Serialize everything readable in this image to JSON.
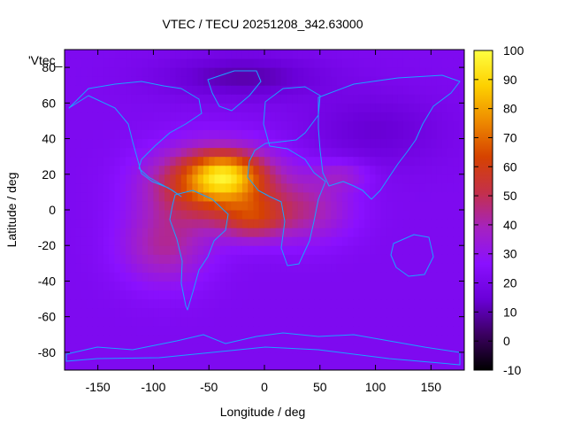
{
  "chart_data": {
    "type": "heatmap",
    "title": "VTEC / TECU 20251208_342.63000",
    "xlabel": "Longitude / deg",
    "ylabel": "Latitude / deg",
    "xlim": [
      -180,
      180
    ],
    "ylim": [
      -90,
      90
    ],
    "x_ticks": [
      -150,
      -100,
      -50,
      0,
      50,
      100,
      150
    ],
    "y_ticks": [
      -80,
      -60,
      -40,
      -20,
      0,
      20,
      40,
      60,
      80
    ],
    "colorbar": {
      "range": [
        -10,
        100
      ],
      "ticks": [
        -10,
        0,
        10,
        20,
        30,
        40,
        50,
        60,
        70,
        80,
        90,
        100
      ],
      "palette": [
        "#000000",
        "#3b0060",
        "#6a00d8",
        "#8a10ff",
        "#a522c0",
        "#c4304a",
        "#d64200",
        "#ee8a00",
        "#fdd000",
        "#ffff40"
      ]
    },
    "legend": {
      "entry": "'Vtec_",
      "placement": "top-left"
    },
    "grid": false,
    "background_vtec": 22,
    "peaks": [
      {
        "lon": -45,
        "lat": 15,
        "vtec": 48,
        "sigma_lon": 55,
        "sigma_lat": 20
      },
      {
        "lon": -35,
        "lat": 20,
        "vtec": 30,
        "sigma_lon": 30,
        "sigma_lat": 12
      },
      {
        "lon": -10,
        "lat": -5,
        "vtec": 25,
        "sigma_lon": 30,
        "sigma_lat": 12
      },
      {
        "lon": -90,
        "lat": -20,
        "vtec": 20,
        "sigma_lon": 40,
        "sigma_lat": 22
      },
      {
        "lon": 40,
        "lat": 0,
        "vtec": 18,
        "sigma_lon": 40,
        "sigma_lat": 18
      },
      {
        "lon": 70,
        "lat": 20,
        "vtec": 12,
        "sigma_lon": 25,
        "sigma_lat": 8
      }
    ],
    "lows": [
      {
        "lon": -20,
        "lat": 75,
        "vtec": -12,
        "sigma_lon": 70,
        "sigma_lat": 12
      },
      {
        "lon": 100,
        "lat": 45,
        "vtec": -8,
        "sigma_lon": 60,
        "sigma_lat": 20
      }
    ]
  }
}
